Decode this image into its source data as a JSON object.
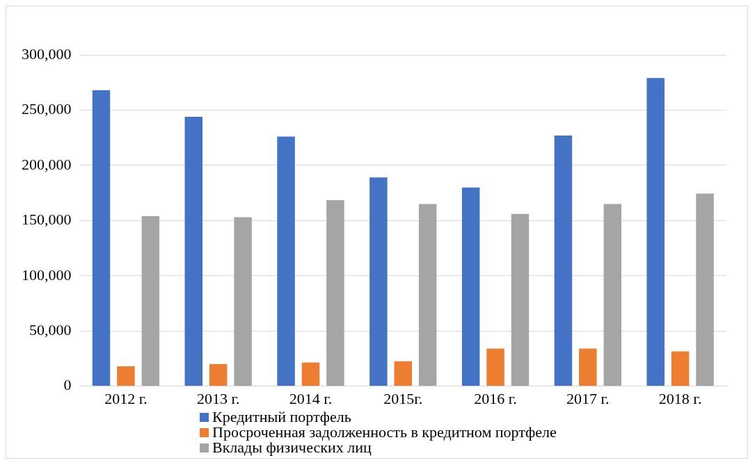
{
  "chart_data": {
    "type": "bar",
    "categories": [
      "2012 г.",
      "2013 г.",
      "2014 г.",
      "2015г.",
      "2016 г.",
      "2017 г.",
      "2018 г."
    ],
    "series": [
      {
        "name": "Кредитный портфель",
        "color": "#4472c4",
        "values": [
          268000,
          244000,
          226000,
          189000,
          180000,
          227000,
          279000
        ]
      },
      {
        "name": "Просроченная задолженность в кредитном портфеле",
        "color": "#ed7d31",
        "values": [
          18000,
          20000,
          21500,
          22500,
          34000,
          34000,
          31500
        ]
      },
      {
        "name": "Вклады физических лиц",
        "color": "#a5a5a5",
        "values": [
          154000,
          153000,
          168500,
          165000,
          156000,
          165000,
          174500
        ]
      }
    ],
    "ylim": [
      0,
      300000
    ],
    "yticks": [
      {
        "value": 0,
        "label": "0"
      },
      {
        "value": 50000,
        "label": "50,000"
      },
      {
        "value": 100000,
        "label": "100,000"
      },
      {
        "value": 150000,
        "label": "150,000"
      },
      {
        "value": 200000,
        "label": "200,000"
      },
      {
        "value": 250000,
        "label": "250,000"
      },
      {
        "value": 300000,
        "label": "300,000"
      }
    ],
    "grid": "y",
    "legend": "bottom"
  }
}
